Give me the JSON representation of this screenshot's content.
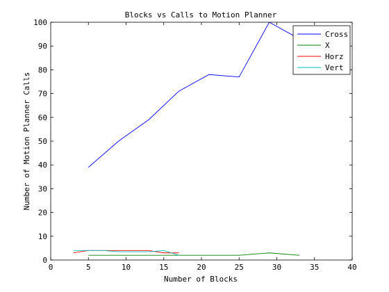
{
  "chart_data": {
    "type": "line",
    "title": "Blocks vs Calls to Motion Planner",
    "xlabel": "Number of Blocks",
    "ylabel": "Number of Motion Planner Calls",
    "xlim": [
      0,
      40
    ],
    "ylim": [
      0,
      100
    ],
    "xticks": [
      0,
      5,
      10,
      15,
      20,
      25,
      30,
      35,
      40
    ],
    "yticks": [
      0,
      10,
      20,
      30,
      40,
      50,
      60,
      70,
      80,
      90,
      100
    ],
    "grid": false,
    "legend_position": "top-right",
    "series": [
      {
        "name": "Cross",
        "color": "#0000ff",
        "x": [
          5,
          9,
          13,
          17,
          21,
          25,
          29,
          33
        ],
        "y": [
          39,
          50,
          59,
          71,
          78,
          77,
          100,
          93
        ]
      },
      {
        "name": "X",
        "color": "#008000",
        "x": [
          5,
          9,
          13,
          17,
          21,
          25,
          29,
          33
        ],
        "y": [
          2,
          2,
          2,
          2,
          2,
          2,
          3,
          2
        ]
      },
      {
        "name": "Horz",
        "color": "#ff0000",
        "x": [
          3,
          5,
          7,
          9,
          11,
          13,
          15,
          17
        ],
        "y": [
          3,
          4,
          4,
          4,
          4,
          4,
          3,
          3
        ]
      },
      {
        "name": "Vert",
        "color": "#00bfbf",
        "x": [
          3,
          5,
          7,
          9,
          11,
          13,
          15,
          17
        ],
        "y": [
          4,
          4,
          4,
          3.5,
          3.5,
          3.5,
          4,
          2
        ]
      }
    ]
  }
}
